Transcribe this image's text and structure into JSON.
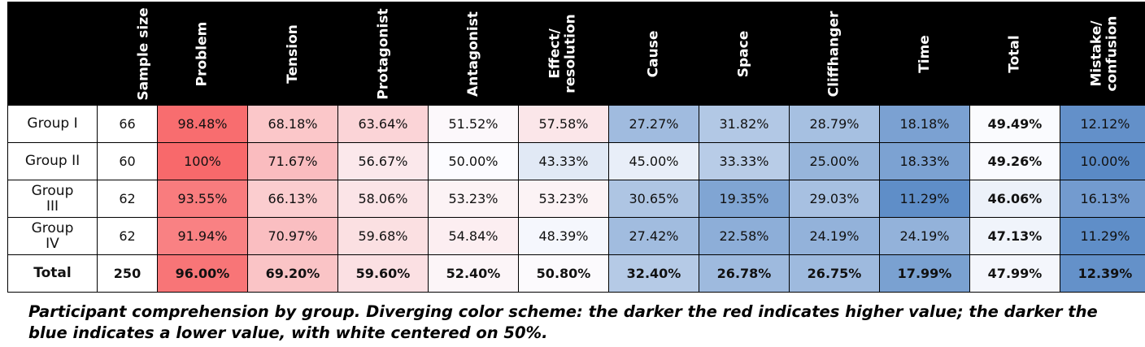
{
  "table": {
    "columns": [
      "",
      "Sample size",
      "Problem",
      "Tension",
      "Protagonist",
      "Antagonist",
      "Effect/\nresolution",
      "Cause",
      "Space",
      "Cliffhanger",
      "Time",
      "Total",
      "Mistake/\nconfusion"
    ],
    "rows": [
      {
        "label": "Group I",
        "sample": "66",
        "cells": [
          "98.48%",
          "68.18%",
          "63.64%",
          "51.52%",
          "57.58%",
          "27.27%",
          "31.82%",
          "28.79%",
          "18.18%",
          "49.49%",
          "12.12%"
        ]
      },
      {
        "label": "Group II",
        "sample": "60",
        "cells": [
          "100%",
          "71.67%",
          "56.67%",
          "50.00%",
          "43.33%",
          "45.00%",
          "33.33%",
          "25.00%",
          "18.33%",
          "49.26%",
          "10.00%"
        ]
      },
      {
        "label": "Group\nIII",
        "sample": "62",
        "cells": [
          "93.55%",
          "66.13%",
          "58.06%",
          "53.23%",
          "53.23%",
          "30.65%",
          "19.35%",
          "29.03%",
          "11.29%",
          "46.06%",
          "16.13%"
        ]
      },
      {
        "label": "Group\nIV",
        "sample": "62",
        "cells": [
          "91.94%",
          "70.97%",
          "59.68%",
          "54.84%",
          "48.39%",
          "27.42%",
          "22.58%",
          "24.19%",
          "24.19%",
          "47.13%",
          "11.29%"
        ]
      },
      {
        "label": "Total",
        "sample": "250",
        "cells": [
          "96.00%",
          "69.20%",
          "59.60%",
          "52.40%",
          "50.80%",
          "32.40%",
          "26.78%",
          "26.75%",
          "17.99%",
          "47.99%",
          "12.39%"
        ],
        "total": true
      }
    ],
    "bold_column": "Total"
  },
  "color_scale": {
    "high": "#f8696b",
    "mid": "#fcfcff",
    "low": "#5a8ac6",
    "center": 50
  },
  "caption": "Participant comprehension by group. Diverging color scheme: the darker the red indicates higher value; the darker the blue indicates a lower value, with white centered on 50%."
}
